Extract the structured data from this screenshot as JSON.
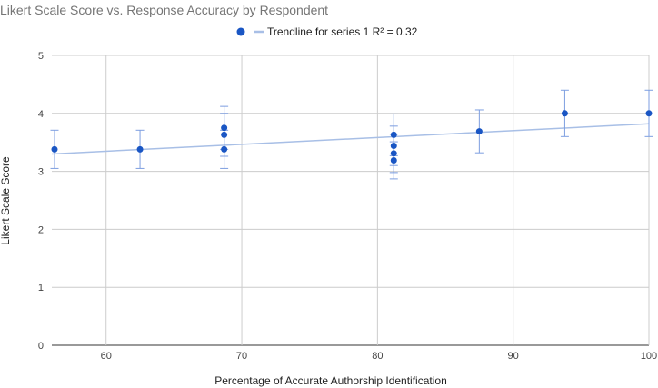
{
  "chart_data": {
    "type": "scatter",
    "title": "Likert Scale Score vs. Response Accuracy by Respondent",
    "xlabel": "Percentage of Accurate Authorship Identification",
    "ylabel": "Likert Scale Score",
    "xlim": [
      56,
      100
    ],
    "ylim": [
      0,
      5
    ],
    "x_ticks": [
      60,
      70,
      80,
      90,
      100
    ],
    "y_ticks": [
      0,
      1,
      2,
      3,
      4,
      5
    ],
    "grid": true,
    "legend_position": "top",
    "legend_label": "Trendline for series 1 R² = 0.32",
    "colors": {
      "points": "#1a56c4",
      "trendline": "#a8bfe6",
      "error_bars": "#7d9ee0"
    },
    "series": [
      {
        "points": [
          {
            "x": 56.2,
            "y": 3.38,
            "err": 0.33
          },
          {
            "x": 62.5,
            "y": 3.38,
            "err": 0.33
          },
          {
            "x": 68.7,
            "y": 3.75,
            "err": 0.37
          },
          {
            "x": 68.7,
            "y": 3.63,
            "err": 0.37
          },
          {
            "x": 68.7,
            "y": 3.38,
            "err": 0.33
          },
          {
            "x": 81.2,
            "y": 3.63,
            "err": 0.36
          },
          {
            "x": 81.2,
            "y": 3.44,
            "err": 0.34
          },
          {
            "x": 81.2,
            "y": 3.31,
            "err": 0.33
          },
          {
            "x": 81.2,
            "y": 3.19,
            "err": 0.32
          },
          {
            "x": 87.5,
            "y": 3.69,
            "err": 0.37
          },
          {
            "x": 93.8,
            "y": 4.0,
            "err": 0.4
          },
          {
            "x": 100,
            "y": 4.0,
            "err": 0.4
          }
        ]
      }
    ],
    "trendline": {
      "x_start": 56,
      "y_start": 3.3,
      "x_end": 100,
      "y_end": 3.82
    }
  }
}
